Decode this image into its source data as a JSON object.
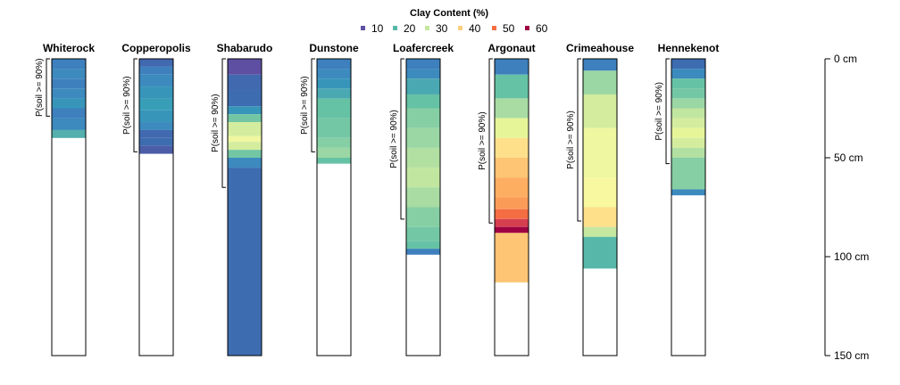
{
  "chart_data": {
    "type": "soil-profile-sketch",
    "legend": {
      "title": "Clay Content (%)",
      "entries": [
        {
          "label": "10",
          "color": "#5E4FA2"
        },
        {
          "label": "20",
          "color": "#57B8A9"
        },
        {
          "label": "30",
          "color": "#C5E79F"
        },
        {
          "label": "40",
          "color": "#FDD07E"
        },
        {
          "label": "50",
          "color": "#F46D43"
        },
        {
          "label": "60",
          "color": "#9E0142"
        }
      ]
    },
    "depth_axis": {
      "unit": "cm",
      "range": [
        0,
        150
      ],
      "ticks": [
        {
          "value": 0,
          "label": "0 cm"
        },
        {
          "value": 50,
          "label": "50 cm"
        },
        {
          "value": 100,
          "label": "100 cm"
        },
        {
          "value": 150,
          "label": "150 cm"
        }
      ]
    },
    "bracket_label": "P(soil >= 90%)",
    "profiles": [
      {
        "name": "Whiterock",
        "bottom": 40,
        "bracket": [
          0,
          29
        ],
        "horizons": [
          [
            0,
            5,
            "#3E80BD"
          ],
          [
            5,
            10,
            "#3C8ABE"
          ],
          [
            10,
            15,
            "#3E80BD"
          ],
          [
            15,
            20,
            "#3C8ABE"
          ],
          [
            20,
            25,
            "#3795BA"
          ],
          [
            25,
            30,
            "#3E80BD"
          ],
          [
            30,
            36,
            "#3C8ABE"
          ],
          [
            36,
            40,
            "#54AFAD"
          ]
        ]
      },
      {
        "name": "Copperopolis",
        "bottom": 48,
        "bracket": [
          0,
          47
        ],
        "horizons": [
          [
            0,
            4,
            "#4169B0"
          ],
          [
            4,
            8,
            "#3E80BD"
          ],
          [
            8,
            14,
            "#3C8ABE"
          ],
          [
            14,
            20,
            "#3795BA"
          ],
          [
            20,
            26,
            "#389EB7"
          ],
          [
            26,
            32,
            "#3795BA"
          ],
          [
            32,
            36,
            "#3C8ABE"
          ],
          [
            36,
            40,
            "#4169B0"
          ],
          [
            40,
            44,
            "#3E6CB0"
          ],
          [
            44,
            48,
            "#4C5DA8"
          ]
        ]
      },
      {
        "name": "Shabarudo",
        "bottom": 150,
        "bracket": [
          0,
          65
        ],
        "horizons": [
          [
            0,
            8,
            "#5E4FA2"
          ],
          [
            8,
            16,
            "#4169B0"
          ],
          [
            16,
            24,
            "#3E6CB0"
          ],
          [
            24,
            28,
            "#3795BA"
          ],
          [
            28,
            32,
            "#72C6A4"
          ],
          [
            32,
            39,
            "#D4EC9E"
          ],
          [
            39,
            42,
            "#EFF7A0"
          ],
          [
            42,
            46,
            "#D4EC9E"
          ],
          [
            46,
            50,
            "#72C6A4"
          ],
          [
            50,
            55,
            "#3C8ABE"
          ],
          [
            55,
            150,
            "#3E6CB0"
          ]
        ]
      },
      {
        "name": "Dunstone",
        "bottom": 53,
        "bracket": [
          0,
          47
        ],
        "horizons": [
          [
            0,
            5,
            "#3E80BD"
          ],
          [
            5,
            10,
            "#3C8ABE"
          ],
          [
            10,
            15,
            "#3795BA"
          ],
          [
            15,
            20,
            "#4AA8B2"
          ],
          [
            20,
            30,
            "#66C2A5"
          ],
          [
            30,
            40,
            "#74C7A5"
          ],
          [
            40,
            45,
            "#86CFA5"
          ],
          [
            45,
            50,
            "#9AD7A4"
          ],
          [
            50,
            53,
            "#66C2A5"
          ]
        ]
      },
      {
        "name": "Loafercreek",
        "bottom": 99,
        "bracket": [
          0,
          81
        ],
        "horizons": [
          [
            0,
            5,
            "#3E80BD"
          ],
          [
            5,
            10,
            "#3C8ABE"
          ],
          [
            10,
            18,
            "#4AA8B2"
          ],
          [
            18,
            25,
            "#66C2A5"
          ],
          [
            25,
            35,
            "#86CFA5"
          ],
          [
            35,
            45,
            "#9AD7A4"
          ],
          [
            45,
            55,
            "#B2E0A2"
          ],
          [
            55,
            65,
            "#C1E6A0"
          ],
          [
            65,
            75,
            "#A8DCA3"
          ],
          [
            75,
            85,
            "#86CFA5"
          ],
          [
            85,
            92,
            "#74C7A5"
          ],
          [
            92,
            96,
            "#66C2A5"
          ],
          [
            96,
            99,
            "#3E80BD"
          ]
        ]
      },
      {
        "name": "Argonaut",
        "bottom": 113,
        "bracket": [
          0,
          83
        ],
        "horizons": [
          [
            0,
            8,
            "#3E80BD"
          ],
          [
            8,
            20,
            "#66C2A5"
          ],
          [
            20,
            30,
            "#A8DCA3"
          ],
          [
            30,
            40,
            "#E6F598"
          ],
          [
            40,
            50,
            "#FEE08B"
          ],
          [
            50,
            60,
            "#FDC574"
          ],
          [
            60,
            70,
            "#FDAE61"
          ],
          [
            70,
            76,
            "#FA9C58"
          ],
          [
            76,
            81,
            "#F46D43"
          ],
          [
            81,
            85,
            "#D53E4F"
          ],
          [
            85,
            88,
            "#9E0142"
          ],
          [
            88,
            113,
            "#FDC574"
          ]
        ]
      },
      {
        "name": "Crimeahouse",
        "bottom": 106,
        "bracket": [
          0,
          82
        ],
        "horizons": [
          [
            0,
            6,
            "#3E80BD"
          ],
          [
            6,
            18,
            "#9AD7A4"
          ],
          [
            18,
            35,
            "#D4EC9E"
          ],
          [
            35,
            60,
            "#EFF7A0"
          ],
          [
            60,
            75,
            "#F7F8A0"
          ],
          [
            75,
            85,
            "#FEE08B"
          ],
          [
            85,
            90,
            "#C5E79F"
          ],
          [
            90,
            106,
            "#57B8A9"
          ]
        ]
      },
      {
        "name": "Hennekenot",
        "bottom": 69,
        "bracket": [
          0,
          53
        ],
        "horizons": [
          [
            0,
            5,
            "#3E6CB0"
          ],
          [
            5,
            10,
            "#3C8ABE"
          ],
          [
            10,
            15,
            "#66C2A5"
          ],
          [
            15,
            20,
            "#74C7A5"
          ],
          [
            20,
            25,
            "#9AD7A4"
          ],
          [
            25,
            30,
            "#C1E6A0"
          ],
          [
            30,
            35,
            "#D4EC9E"
          ],
          [
            35,
            40,
            "#E6F598"
          ],
          [
            40,
            45,
            "#D4EC9E"
          ],
          [
            45,
            50,
            "#B2E0A2"
          ],
          [
            50,
            66,
            "#86CFA5"
          ],
          [
            66,
            69,
            "#3C8ABE"
          ]
        ]
      }
    ]
  }
}
